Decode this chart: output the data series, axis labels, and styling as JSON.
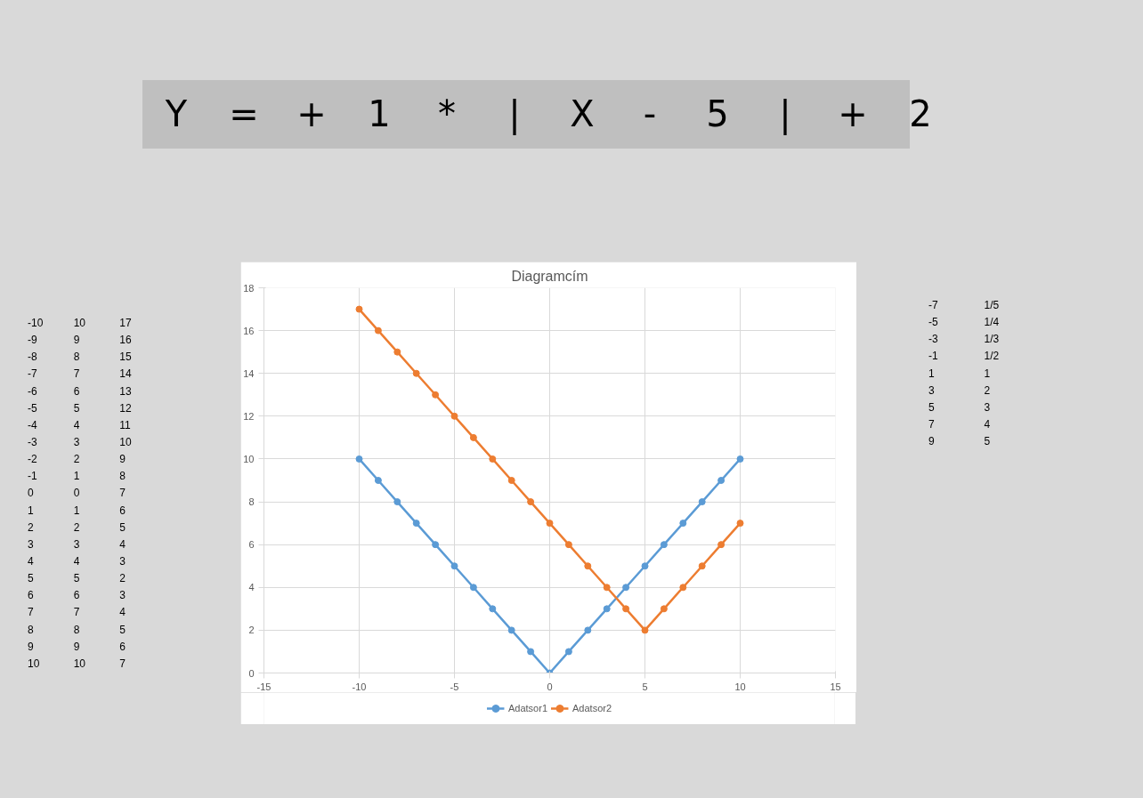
{
  "chart_data": {
    "type": "line",
    "title": "Diagramcím",
    "x": [
      -10,
      -9,
      -8,
      -7,
      -6,
      -5,
      -4,
      -3,
      -2,
      -1,
      0,
      1,
      2,
      3,
      4,
      5,
      6,
      7,
      8,
      9,
      10
    ],
    "series": [
      {
        "name": "Adatsor1",
        "color": "#5b9bd5",
        "values": [
          10,
          9,
          8,
          7,
          6,
          5,
          4,
          3,
          2,
          1,
          0,
          1,
          2,
          3,
          4,
          5,
          6,
          7,
          8,
          9,
          10
        ]
      },
      {
        "name": "Adatsor2",
        "color": "#ed7d31",
        "values": [
          17,
          16,
          15,
          14,
          13,
          12,
          11,
          10,
          9,
          8,
          7,
          6,
          5,
          4,
          3,
          2,
          3,
          4,
          5,
          6,
          7
        ]
      }
    ],
    "xlim": [
      -15,
      15
    ],
    "xticks": [
      -15,
      -10,
      -5,
      0,
      5,
      10,
      15
    ],
    "ylim": [
      0,
      18
    ],
    "yticks": [
      0,
      2,
      4,
      6,
      8,
      10,
      12,
      14,
      16,
      18
    ],
    "grid": true,
    "legend": "bottom",
    "marker": "circle",
    "line_style": "solid",
    "annotations": [
      "Y = + 1 * | X - 5 | + 2",
      "-10 10 17",
      "-9 9 16",
      "-8 8 15",
      "-7 7 14",
      "-6 6 13",
      "-5 5 12",
      "-4 4 11",
      "-3 3 10",
      "-2 2 9",
      "-1 1 8",
      "0 0 7",
      "1 1 6",
      "2 2 5",
      "3 3 4",
      "4 4 3",
      "5 5 2",
      "6 6 3",
      "7 7 4",
      "8 8 5",
      "9 9 6",
      "10 10 7",
      "-7 1/5",
      "-5 1/4",
      "-3 1/3",
      "-1 1/2",
      "1 1",
      "3 2",
      "5 3",
      "7 4",
      "9 5"
    ]
  }
}
